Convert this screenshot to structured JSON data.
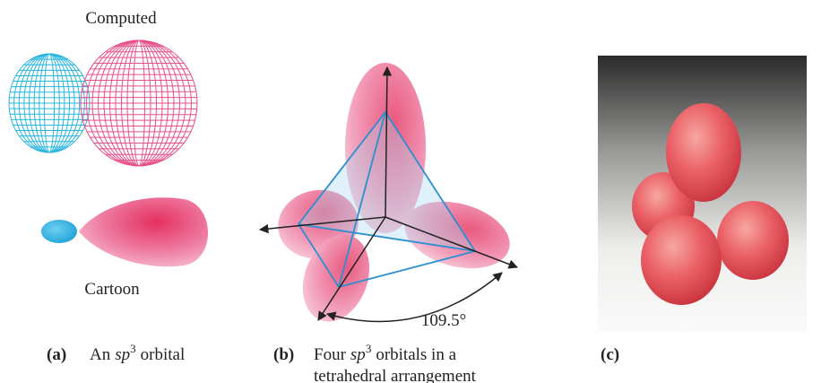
{
  "panels": [
    {
      "label": "(a)",
      "top_label": "Computed",
      "bottom_label": "Cartoon",
      "caption_lines": [
        [
          {
            "text": "An"
          },
          {
            "text": "sp",
            "style": "italic"
          },
          {
            "text": "3",
            "style": "sup"
          },
          {
            "text": "orbital"
          }
        ]
      ]
    },
    {
      "label": "(b)",
      "angle_label": "109.5°",
      "caption_lines": [
        [
          {
            "text": "Four"
          },
          {
            "text": "sp",
            "style": "italic"
          },
          {
            "text": "3",
            "style": "sup"
          },
          {
            "text": "orbitals in a"
          }
        ],
        [
          {
            "text": "tetrahedral arrangement"
          }
        ]
      ]
    },
    {
      "label": "(c)"
    }
  ]
}
